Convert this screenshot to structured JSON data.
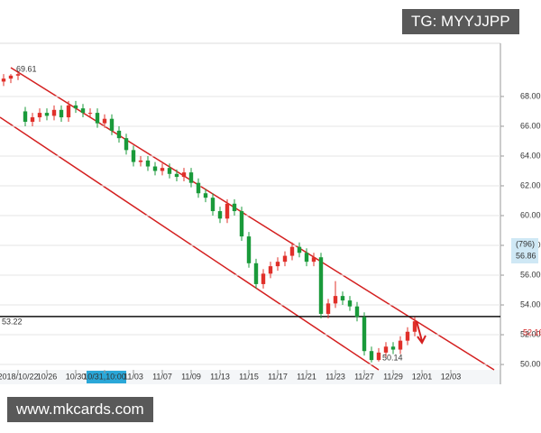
{
  "chart_data": {
    "type": "candlestick",
    "open": [
      69.0,
      69.2,
      69.4,
      67.0,
      66.3,
      66.6,
      66.9,
      66.7,
      67.1,
      66.6,
      67.4,
      67.2,
      66.9,
      66.9,
      66.2,
      66.5,
      65.7,
      65.2,
      64.4,
      63.6,
      63.7,
      63.3,
      63.0,
      63.2,
      62.8,
      62.6,
      62.9,
      62.2,
      61.5,
      61.2,
      60.3,
      59.8,
      60.8,
      60.3,
      58.6,
      56.8,
      55.4,
      56.1,
      56.6,
      56.9,
      57.3,
      57.9,
      57.5,
      56.9,
      57.2,
      53.4,
      54.1,
      54.6,
      54.3,
      53.9,
      53.2,
      50.9,
      50.3,
      50.8,
      51.2,
      51.0,
      51.6,
      52.2
    ],
    "high": [
      69.5,
      69.5,
      69.61,
      67.3,
      66.9,
      67.2,
      67.2,
      67.4,
      67.4,
      67.7,
      67.7,
      67.5,
      67.2,
      67.2,
      66.8,
      66.8,
      66.0,
      65.5,
      64.7,
      64.0,
      64.0,
      63.6,
      63.5,
      63.5,
      63.1,
      63.2,
      63.2,
      62.5,
      61.8,
      61.5,
      60.6,
      61.1,
      61.1,
      60.6,
      58.9,
      57.1,
      56.4,
      56.9,
      57.2,
      57.6,
      58.2,
      58.2,
      57.8,
      57.5,
      57.5,
      54.4,
      55.6,
      54.9,
      54.6,
      54.2,
      53.5,
      51.2,
      51.1,
      51.5,
      51.5,
      51.9,
      52.5,
      53.2
    ],
    "low": [
      68.7,
      68.9,
      69.1,
      66.0,
      66.0,
      66.3,
      66.4,
      66.4,
      66.3,
      66.3,
      66.9,
      66.6,
      66.6,
      65.9,
      65.9,
      65.4,
      64.9,
      64.1,
      63.3,
      63.3,
      63.0,
      62.7,
      62.7,
      62.5,
      62.3,
      62.3,
      61.9,
      61.2,
      60.9,
      60.0,
      59.5,
      59.5,
      60.0,
      58.3,
      56.5,
      55.1,
      55.1,
      55.8,
      56.3,
      56.6,
      57.0,
      57.2,
      56.6,
      56.6,
      53.1,
      53.1,
      53.8,
      54.0,
      53.6,
      52.9,
      50.6,
      50.14,
      50.2,
      50.5,
      50.7,
      50.7,
      51.3,
      51.9
    ],
    "close": [
      69.2,
      69.4,
      69.5,
      66.3,
      66.6,
      66.9,
      66.7,
      67.1,
      66.6,
      67.4,
      67.2,
      66.9,
      66.9,
      66.2,
      66.5,
      65.7,
      65.2,
      64.4,
      63.6,
      63.7,
      63.3,
      63.0,
      63.2,
      62.8,
      62.6,
      62.9,
      62.2,
      61.5,
      61.2,
      60.3,
      59.8,
      60.8,
      60.3,
      58.6,
      56.8,
      55.4,
      56.1,
      56.6,
      56.9,
      57.3,
      57.9,
      57.5,
      56.9,
      57.2,
      53.4,
      54.1,
      54.6,
      54.3,
      53.9,
      53.2,
      50.9,
      50.3,
      50.8,
      51.2,
      51.0,
      51.6,
      52.2,
      52.9
    ],
    "up_color": "#e0302a",
    "down_color": "#1a9a3a",
    "xlim": [
      -0.5,
      68.875
    ],
    "xticks": [
      {
        "value": 2,
        "label": "2018/10/22"
      },
      {
        "value": 6,
        "label": "10/26"
      },
      {
        "value": 10,
        "label": "10/30"
      },
      {
        "value": 14,
        "label": "10/31,10:00"
      },
      {
        "value": 18,
        "label": "11/03"
      },
      {
        "value": 22,
        "label": "11/07"
      },
      {
        "value": 26,
        "label": "11/09"
      },
      {
        "value": 30,
        "label": "11/13"
      },
      {
        "value": 34,
        "label": "11/15"
      },
      {
        "value": 38,
        "label": "11/17"
      },
      {
        "value": 42,
        "label": "11/21"
      },
      {
        "value": 46,
        "label": "11/23"
      },
      {
        "value": 50,
        "label": "11/27"
      },
      {
        "value": 54,
        "label": "11/29"
      },
      {
        "value": 58,
        "label": "12/01"
      },
      {
        "value": 62,
        "label": "12/03"
      }
    ],
    "highlighted_xtick": 3,
    "ylim": [
      49.64,
      71.45
    ],
    "yticks": [
      {
        "value": 50,
        "label": "50.00"
      },
      {
        "value": 52,
        "label": "52.00"
      },
      {
        "value": 54,
        "label": "54.00"
      },
      {
        "value": 56,
        "label": "56.00"
      },
      {
        "value": 58,
        "label": "58.00"
      },
      {
        "value": 60,
        "label": "60.00"
      },
      {
        "value": 62,
        "label": "62.00"
      },
      {
        "value": 64,
        "label": "64.00"
      },
      {
        "value": 66,
        "label": "66.00"
      },
      {
        "value": 68,
        "label": "68.00"
      }
    ],
    "grid": true,
    "hline": 53.22,
    "high_label": "69.61",
    "low_label": "50.14",
    "right_labels": [
      "(796)",
      "56.86",
      "52.16"
    ]
  },
  "watermark_top": "TG: MYYJJPP",
  "watermark_bottom": "www.mkcards.com"
}
